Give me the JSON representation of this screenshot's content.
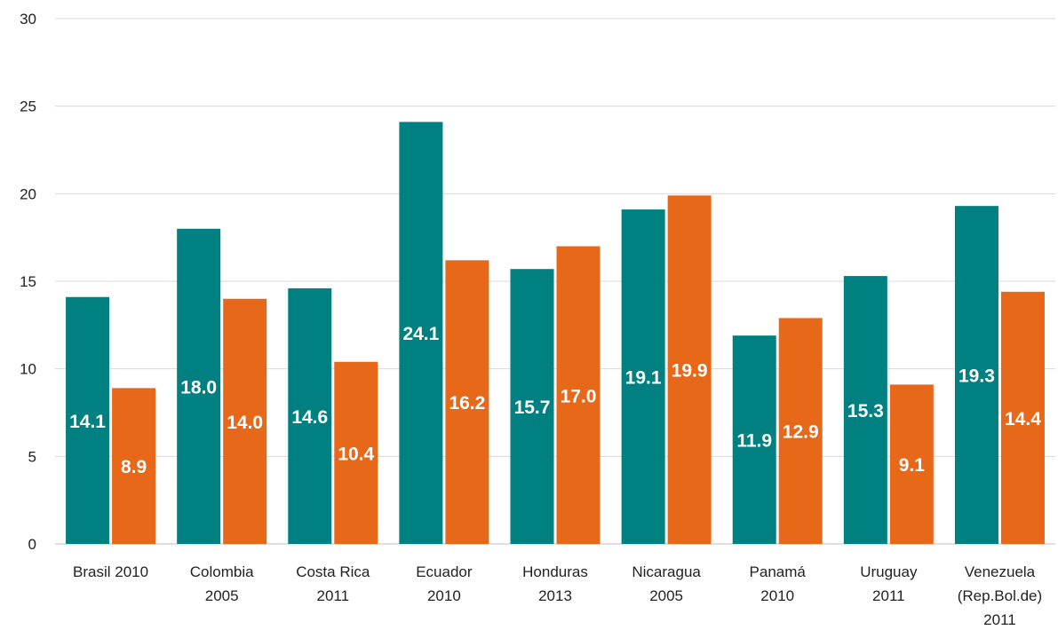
{
  "chart_data": {
    "type": "bar",
    "categories": [
      [
        "Brasil 2010"
      ],
      [
        "Colombia",
        "2005"
      ],
      [
        "Costa Rica",
        "2011"
      ],
      [
        "Ecuador",
        "2010"
      ],
      [
        "Honduras",
        "2013"
      ],
      [
        "Nicaragua",
        "2005"
      ],
      [
        "Panamá",
        "2010"
      ],
      [
        "Uruguay",
        "2011"
      ],
      [
        "Venezuela",
        "(Rep.Bol.de)",
        "2011"
      ]
    ],
    "series": [
      {
        "color": "#008080",
        "values": [
          14.1,
          18.0,
          14.6,
          24.1,
          15.7,
          19.1,
          11.9,
          15.3,
          19.3
        ],
        "labels": [
          "14.1",
          "18.0",
          "14.6",
          "24.1",
          "15.7",
          "19.1",
          "11.9",
          "15.3",
          "19.3"
        ]
      },
      {
        "color": "#E8681A",
        "values": [
          8.9,
          14.0,
          10.4,
          16.2,
          17.0,
          19.9,
          12.9,
          9.1,
          14.4
        ],
        "labels": [
          "8.9",
          "14.0",
          "10.4",
          "16.2",
          "17.0",
          "19.9",
          "12.9",
          "9.1",
          "14.4"
        ]
      }
    ],
    "yticks": [
      "0",
      "5",
      "10",
      "15",
      "20",
      "25",
      "30"
    ],
    "ylim": [
      0,
      30
    ],
    "grid": true,
    "legend": "none"
  }
}
